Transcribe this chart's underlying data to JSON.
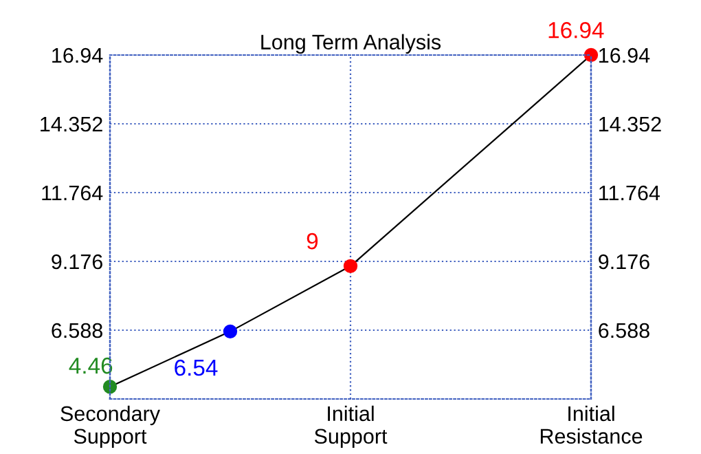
{
  "chart_data": {
    "type": "line",
    "title": "Long Term Analysis",
    "categories": [
      "Secondary\nSupport",
      null,
      "Initial\nSupport",
      null,
      "Initial\nResistance"
    ],
    "series": [
      {
        "color": "#000000",
        "colors": [
          "#228b22",
          "#0000ff",
          "#ff0000",
          null,
          "#ff0000"
        ],
        "values": [
          4.46,
          6.54,
          9,
          null,
          16.94
        ]
      }
    ],
    "ylim": [
      4,
      16.94
    ],
    "yticks": [
      6.588,
      9.176,
      11.764,
      14.352,
      16.94
    ],
    "y2lim": [
      4,
      16.94
    ],
    "y2ticks": [
      6.588,
      9.176,
      11.764,
      14.352,
      16.94
    ],
    "grid": true,
    "marker": "circle",
    "line_style": "solid",
    "data_labels": true
  }
}
